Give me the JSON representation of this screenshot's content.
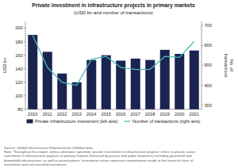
{
  "chart_data": {
    "type": "bar",
    "title": "Private investment in infrastructure projects in primary markets",
    "subtitle": "(USD bn and number of transactions)",
    "categories": [
      "2010",
      "2011",
      "2012",
      "2013",
      "2014",
      "2015",
      "2016",
      "2017",
      "2018",
      "2019",
      "2020",
      "2021"
    ],
    "series": [
      {
        "name": "Private infrastructure investment (left axis)",
        "type": "bar",
        "color": "#1a2451",
        "values": [
          190,
          165,
          133,
          120,
          153,
          160,
          152,
          155,
          153,
          168,
          162,
          167
        ]
      },
      {
        "name": "Number of transactions (right axis)",
        "type": "line",
        "axis": "y2",
        "color": "#4db8b8",
        "values": [
          650,
          490,
          415,
          400,
          530,
          545,
          490,
          480,
          480,
          545,
          540,
          620
        ]
      }
    ],
    "ylabel": "USD bn",
    "y2label": "No. of\ntransactions",
    "ylim": [
      80,
      210
    ],
    "yticks": [
      80,
      100,
      120,
      140,
      160,
      180,
      200
    ],
    "y2lim": [
      280,
      720
    ],
    "y2ticks": [
      300,
      400,
      500,
      600,
      700
    ],
    "grid": false,
    "legend": "bottom",
    "source": "Source: Global Infrastructure Hub based on IJGlobal data.\nNote: Throughout this report, unless otherwise specified, 'private investment in infrastructure projects' refers to private sector\ninvestment in infrastructure projects in primary markets (financed by private and public financiers) including greenfield and\nbrownfield infrastructure, as well as privatisations. Investment values represent commitments made at the financial close of\ninvestment and not executed investment."
  }
}
